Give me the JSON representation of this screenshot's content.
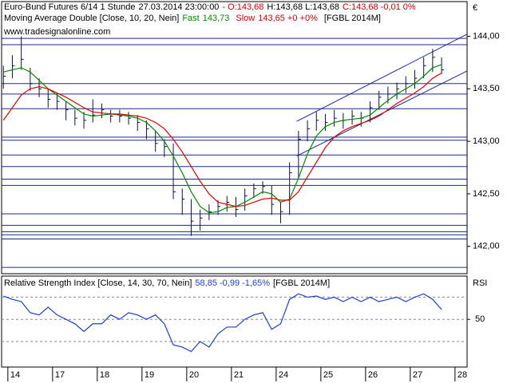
{
  "chart_data": [
    {
      "type": "ohlc",
      "title": "Euro-Bund Futures 6/14 1 Stunde",
      "timestamp": "27.03.2014 23:00:00",
      "quote_parts": [
        "- O:143,68",
        "H:143,68 L:143,68",
        "C:143,68 -0,01 0%"
      ],
      "indicator": "Moving Average Double [Close, 10, 20, Nein]",
      "readouts": [
        "143,73",
        "143,65 +0 +0%"
      ],
      "symbol": "[FGBL 2014M]",
      "source": "www.tradesignalonline.com",
      "currency": "€",
      "bar_color": "#101040",
      "x": [
        -0.1,
        0.1,
        0.3,
        0.5,
        0.7,
        0.9,
        1.1,
        1.3,
        1.5,
        1.7,
        1.9,
        2.1,
        2.3,
        2.5,
        2.7,
        2.9,
        3.1,
        3.3,
        3.5,
        3.7,
        3.9,
        4.1,
        4.3,
        4.5,
        4.7,
        4.9,
        5.1,
        5.3,
        5.5,
        5.7,
        5.9,
        6.1,
        6.3,
        6.5,
        6.7,
        6.9,
        7.1,
        7.3,
        7.5,
        7.7,
        7.9,
        8.1,
        8.3,
        8.5,
        8.7,
        8.9,
        9.1,
        9.3,
        9.5,
        9.7
      ],
      "high": [
        143.72,
        143.82,
        144.0,
        143.7,
        143.6,
        143.5,
        143.45,
        143.38,
        143.3,
        143.28,
        143.4,
        143.36,
        143.3,
        143.3,
        143.28,
        143.25,
        143.2,
        143.1,
        143.02,
        142.98,
        142.55,
        142.45,
        142.35,
        142.4,
        142.44,
        142.48,
        142.47,
        142.55,
        142.6,
        142.62,
        142.58,
        142.42,
        142.8,
        143.1,
        143.2,
        143.28,
        143.26,
        143.3,
        143.27,
        143.3,
        143.28,
        143.38,
        143.48,
        143.52,
        143.56,
        143.62,
        143.68,
        143.8,
        143.88,
        143.8
      ],
      "low": [
        143.5,
        143.6,
        143.68,
        143.48,
        143.42,
        143.32,
        143.3,
        143.2,
        143.15,
        143.12,
        143.18,
        143.22,
        143.18,
        143.18,
        143.16,
        143.1,
        143.02,
        142.9,
        142.85,
        142.45,
        142.3,
        142.1,
        142.15,
        142.25,
        142.3,
        142.33,
        142.28,
        142.34,
        142.46,
        142.5,
        142.3,
        142.22,
        142.3,
        142.65,
        143.0,
        143.1,
        143.1,
        143.14,
        143.12,
        143.16,
        143.14,
        143.18,
        143.3,
        143.36,
        143.4,
        143.46,
        143.5,
        143.6,
        143.66,
        143.64
      ],
      "close": [
        143.62,
        143.72,
        143.78,
        143.55,
        143.5,
        143.4,
        143.38,
        143.3,
        143.22,
        143.2,
        143.25,
        143.3,
        143.24,
        143.24,
        143.22,
        143.18,
        143.12,
        142.98,
        142.95,
        142.52,
        142.45,
        142.24,
        142.27,
        142.33,
        142.38,
        142.42,
        142.35,
        142.48,
        142.55,
        142.57,
        142.4,
        142.33,
        142.7,
        143.02,
        143.12,
        143.2,
        143.18,
        143.22,
        143.2,
        143.24,
        143.22,
        143.32,
        143.42,
        143.45,
        143.5,
        143.55,
        143.6,
        143.72,
        143.8,
        143.68
      ],
      "series": [
        {
          "name": "Fast",
          "color": "#008a00",
          "values": [
            143.66,
            143.68,
            143.7,
            143.66,
            143.58,
            143.5,
            143.44,
            143.38,
            143.32,
            143.26,
            143.24,
            143.25,
            143.26,
            143.25,
            143.24,
            143.22,
            143.18,
            143.1,
            143.0,
            142.86,
            142.7,
            142.52,
            142.38,
            142.32,
            142.33,
            142.37,
            142.38,
            142.42,
            142.47,
            142.52,
            142.5,
            142.42,
            142.45,
            142.65,
            142.88,
            143.05,
            143.14,
            143.18,
            143.2,
            143.21,
            143.22,
            143.25,
            143.32,
            143.39,
            143.45,
            143.5,
            143.55,
            143.62,
            143.7,
            143.73
          ]
        },
        {
          "name": "Slow",
          "color": "#e00000",
          "values": [
            143.2,
            143.32,
            143.44,
            143.5,
            143.52,
            143.5,
            143.46,
            143.42,
            143.37,
            143.32,
            143.28,
            143.27,
            143.26,
            143.26,
            143.25,
            143.24,
            143.22,
            143.18,
            143.12,
            143.02,
            142.9,
            142.76,
            142.62,
            142.5,
            142.42,
            142.4,
            142.38,
            142.39,
            142.42,
            142.45,
            142.46,
            142.44,
            142.44,
            142.52,
            142.66,
            142.8,
            142.94,
            143.04,
            143.1,
            143.14,
            143.17,
            143.2,
            143.24,
            143.3,
            143.36,
            143.41,
            143.46,
            143.52,
            143.6,
            143.65
          ]
        }
      ],
      "hlines": [
        143.98,
        143.92,
        143.55,
        143.45,
        143.31,
        143.04,
        143.01,
        142.87,
        142.76,
        142.64,
        142.58,
        142.31,
        142.2,
        142.14,
        142.11,
        142.07,
        141.8
      ],
      "line_color": "#1c2a8c",
      "trendlines": [
        {
          "x": [
            6.46,
            10.27
          ],
          "y": [
            143.19,
            144.02
          ]
        },
        {
          "x": [
            6.46,
            10.27
          ],
          "y": [
            142.86,
            143.67
          ]
        }
      ],
      "xlim": [
        -0.14,
        10.27
      ],
      "ylim": [
        141.74,
        144.33
      ],
      "yticks": [
        {
          "value": 144,
          "label": "144,00"
        },
        {
          "value": 143.5,
          "label": "143,50"
        },
        {
          "value": 143,
          "label": "143,00"
        },
        {
          "value": 142.5,
          "label": "142,50"
        },
        {
          "value": 142,
          "label": "142,00"
        }
      ]
    },
    {
      "type": "line",
      "title": "Relative Strength Index [Close, 14, 30, 70, Nein]",
      "readout": "58,85 -0,99 -1,65%",
      "symbol": "[FGBL 2014M]",
      "axis_label": "RSI",
      "color": "#1f3fbf",
      "x": [
        -0.1,
        0.1,
        0.3,
        0.5,
        0.7,
        0.9,
        1.1,
        1.3,
        1.5,
        1.7,
        1.9,
        2.1,
        2.3,
        2.5,
        2.7,
        2.9,
        3.1,
        3.3,
        3.5,
        3.7,
        3.9,
        4.1,
        4.3,
        4.5,
        4.7,
        4.9,
        5.1,
        5.3,
        5.5,
        5.7,
        5.9,
        6.1,
        6.3,
        6.5,
        6.7,
        6.9,
        7.1,
        7.3,
        7.5,
        7.7,
        7.9,
        8.1,
        8.3,
        8.5,
        8.7,
        8.9,
        9.1,
        9.3,
        9.5,
        9.7
      ],
      "values": [
        71,
        68,
        66,
        56,
        54,
        61,
        54,
        50,
        46,
        39,
        46,
        46,
        54,
        50,
        56,
        54,
        50,
        54,
        46,
        27,
        25,
        21,
        30,
        25,
        37,
        43,
        43,
        50,
        54,
        56,
        41,
        46,
        68,
        73,
        70,
        71,
        68,
        70,
        66,
        70,
        66,
        70,
        66,
        68,
        70,
        66,
        70,
        73,
        68,
        58.85
      ],
      "levels": [
        30,
        70
      ],
      "xlim": [
        -0.14,
        10.27
      ],
      "ylim": [
        7,
        89
      ],
      "yticks": [
        50
      ],
      "xticks": [
        {
          "value": 0,
          "label": "14"
        },
        {
          "value": 1,
          "label": "17"
        },
        {
          "value": 2,
          "label": "18"
        },
        {
          "value": 3,
          "label": "19"
        },
        {
          "value": 4,
          "label": "20"
        },
        {
          "value": 5,
          "label": "21"
        },
        {
          "value": 6,
          "label": "24"
        },
        {
          "value": 7,
          "label": "25"
        },
        {
          "value": 8,
          "label": "26"
        },
        {
          "value": 9,
          "label": "27"
        },
        {
          "value": 10,
          "label": "28"
        }
      ]
    }
  ]
}
